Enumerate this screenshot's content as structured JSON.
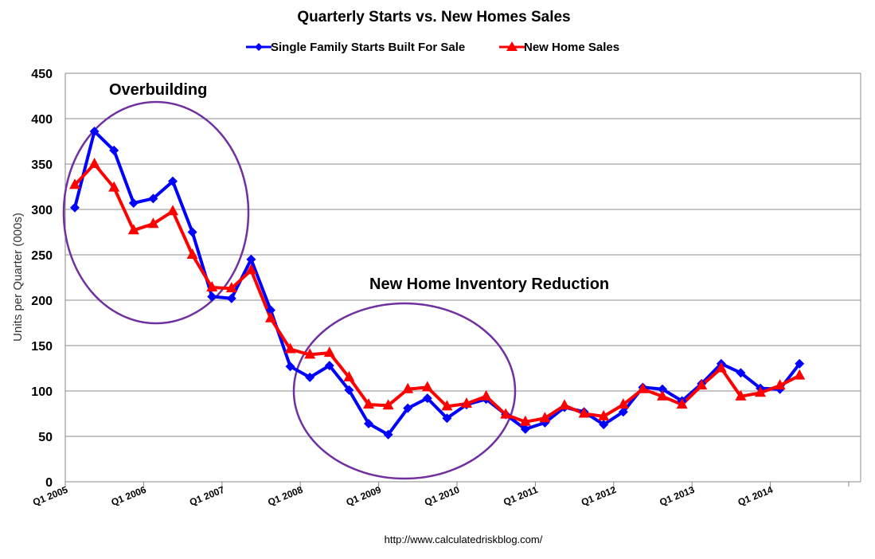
{
  "chart_data": {
    "type": "line",
    "title": "Quarterly Starts vs. New Homes Sales",
    "xlabel": "",
    "ylabel": "Units per Quarter (000s)",
    "ylim": [
      0,
      450
    ],
    "yticks": [
      0,
      50,
      100,
      150,
      200,
      250,
      300,
      350,
      400,
      450
    ],
    "grid": true,
    "legend_position": "top-center",
    "x_tick_labels": [
      "Q1 2005",
      "Q1 2006",
      "Q1 2007",
      "Q1 2008",
      "Q1 2009",
      "Q1 2010",
      "Q1 2011",
      "Q1 2012",
      "Q1 2013",
      "Q1 2014"
    ],
    "x_count": 38,
    "series": [
      {
        "name": "Single Family Starts Built For Sale",
        "color": "#0000ff",
        "marker": "diamond",
        "values": [
          302,
          386,
          365,
          307,
          312,
          331,
          275,
          204,
          202,
          245,
          189,
          127,
          115,
          128,
          101,
          64,
          52,
          81,
          92,
          70,
          85,
          91,
          74,
          58,
          65,
          82,
          77,
          63,
          77,
          104,
          102,
          89,
          108,
          130,
          120,
          103,
          102,
          130
        ]
      },
      {
        "name": "New Home Sales",
        "color": "#ff0000",
        "marker": "triangle",
        "values": [
          327,
          350,
          324,
          277,
          284,
          298,
          250,
          214,
          213,
          233,
          180,
          146,
          140,
          142,
          115,
          85,
          84,
          102,
          104,
          83,
          86,
          94,
          74,
          66,
          70,
          84,
          75,
          72,
          85,
          102,
          94,
          85,
          106,
          125,
          94,
          98,
          106,
          117
        ]
      }
    ],
    "annotations": [
      {
        "text": "Overbuilding"
      },
      {
        "text": "New Home Inventory Reduction"
      }
    ],
    "source": "http://www.calculatedriskblog.com/"
  }
}
